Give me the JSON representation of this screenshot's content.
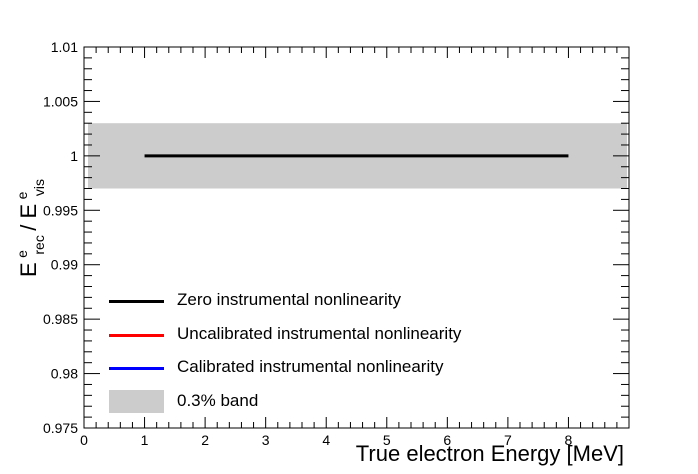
{
  "chart_data": {
    "type": "line",
    "xlabel": "True electron Energy [MeV]",
    "ylabel": {
      "main": "E",
      "sup1": "e",
      "sub1": "rec",
      "sep": " / E",
      "sup2": "e",
      "sub2": "vis"
    },
    "xlim": [
      0,
      9
    ],
    "ylim": [
      0.975,
      1.01
    ],
    "x_ticks": [
      0,
      1,
      2,
      3,
      4,
      5,
      6,
      7,
      8
    ],
    "y_ticks": [
      0.975,
      0.98,
      0.985,
      0.99,
      0.995,
      1,
      1.005,
      1.01
    ],
    "y_tick_labels": [
      "0.975",
      "0.98",
      "0.985",
      "0.99",
      "0.995",
      "1",
      "1.005",
      "1.01"
    ],
    "band": {
      "name": "0.3% band",
      "center": 1.0,
      "half_width": 0.003,
      "color": "#cccccc"
    },
    "series": [
      {
        "name": "Zero instrumental nonlinearity",
        "color": "#000000",
        "x": [
          1,
          8
        ],
        "y": [
          1.0,
          1.0
        ]
      },
      {
        "name": "Uncalibrated instrumental nonlinearity",
        "color": "#ff0000",
        "x": [],
        "y": []
      },
      {
        "name": "Calibrated instrumental nonlinearity",
        "color": "#0000ff",
        "x": [],
        "y": []
      }
    ],
    "grid": false,
    "legend_position": "bottom-left"
  }
}
